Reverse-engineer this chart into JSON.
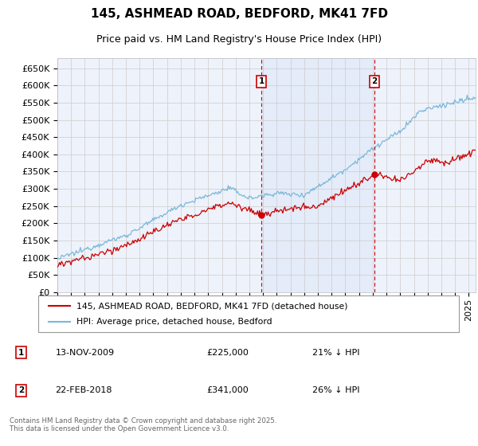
{
  "title": "145, ASHMEAD ROAD, BEDFORD, MK41 7FD",
  "subtitle": "Price paid vs. HM Land Registry's House Price Index (HPI)",
  "ylabel_ticks": [
    "£0",
    "£50K",
    "£100K",
    "£150K",
    "£200K",
    "£250K",
    "£300K",
    "£350K",
    "£400K",
    "£450K",
    "£500K",
    "£550K",
    "£600K",
    "£650K"
  ],
  "ytick_values": [
    0,
    50000,
    100000,
    150000,
    200000,
    250000,
    300000,
    350000,
    400000,
    450000,
    500000,
    550000,
    600000,
    650000
  ],
  "ylim": [
    0,
    680000
  ],
  "xlim_start": 1995.0,
  "xlim_end": 2025.5,
  "hpi_color": "#7ab8d9",
  "price_color": "#cc0000",
  "purchase1_date": 2009.87,
  "purchase1_price": 225000,
  "purchase1_label": "1",
  "purchase2_date": 2018.13,
  "purchase2_price": 341000,
  "purchase2_label": "2",
  "legend_line1": "145, ASHMEAD ROAD, BEDFORD, MK41 7FD (detached house)",
  "legend_line2": "HPI: Average price, detached house, Bedford",
  "annotation1_date": "13-NOV-2009",
  "annotation1_price": "£225,000",
  "annotation1_pct": "21% ↓ HPI",
  "annotation2_date": "22-FEB-2018",
  "annotation2_price": "£341,000",
  "annotation2_pct": "26% ↓ HPI",
  "footer": "Contains HM Land Registry data © Crown copyright and database right 2025.\nThis data is licensed under the Open Government Licence v3.0.",
  "background_color": "#ffffff",
  "plot_bg_color": "#eef2fb",
  "grid_color": "#cccccc",
  "title_fontsize": 11,
  "subtitle_fontsize": 9,
  "tick_fontsize": 8
}
